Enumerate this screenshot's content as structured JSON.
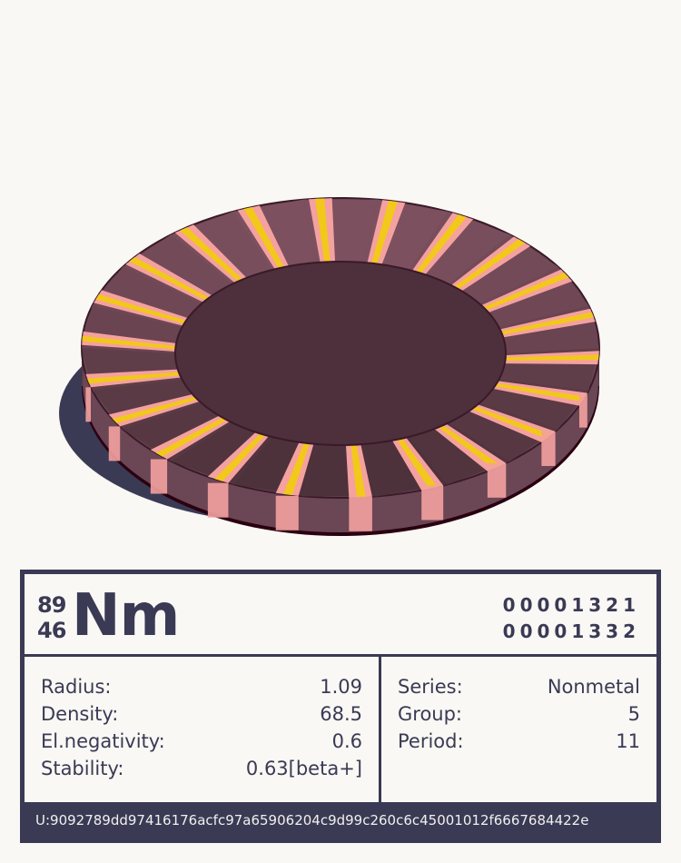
{
  "element": {
    "mass_number": "89",
    "atomic_number": "46",
    "symbol": "Nm",
    "codes": [
      "00001321",
      "00001332"
    ]
  },
  "properties_left": [
    {
      "label": "Radius:",
      "value": "1.09"
    },
    {
      "label": "Density:",
      "value": "68.5"
    },
    {
      "label": "El.negativity:",
      "value": "0.6"
    },
    {
      "label": "Stability:",
      "value": "0.63[beta+]"
    }
  ],
  "properties_right": [
    {
      "label": "Series:",
      "value": "Nonmetal"
    },
    {
      "label": "Group:",
      "value": "5"
    },
    {
      "label": "Period:",
      "value": "11"
    }
  ],
  "footer": {
    "uid": "U:9092789dd97416176acfc97a65906204c9d99c260c6c45001012f6667684422e"
  },
  "colors": {
    "ink": "#3a3a55",
    "background": "#f9f8f4",
    "ring_dark": "#4e2f3c",
    "stripe_pink": "#f4a1a0",
    "stripe_yellow": "#f2c81a",
    "shadow": "#3a3a55"
  }
}
